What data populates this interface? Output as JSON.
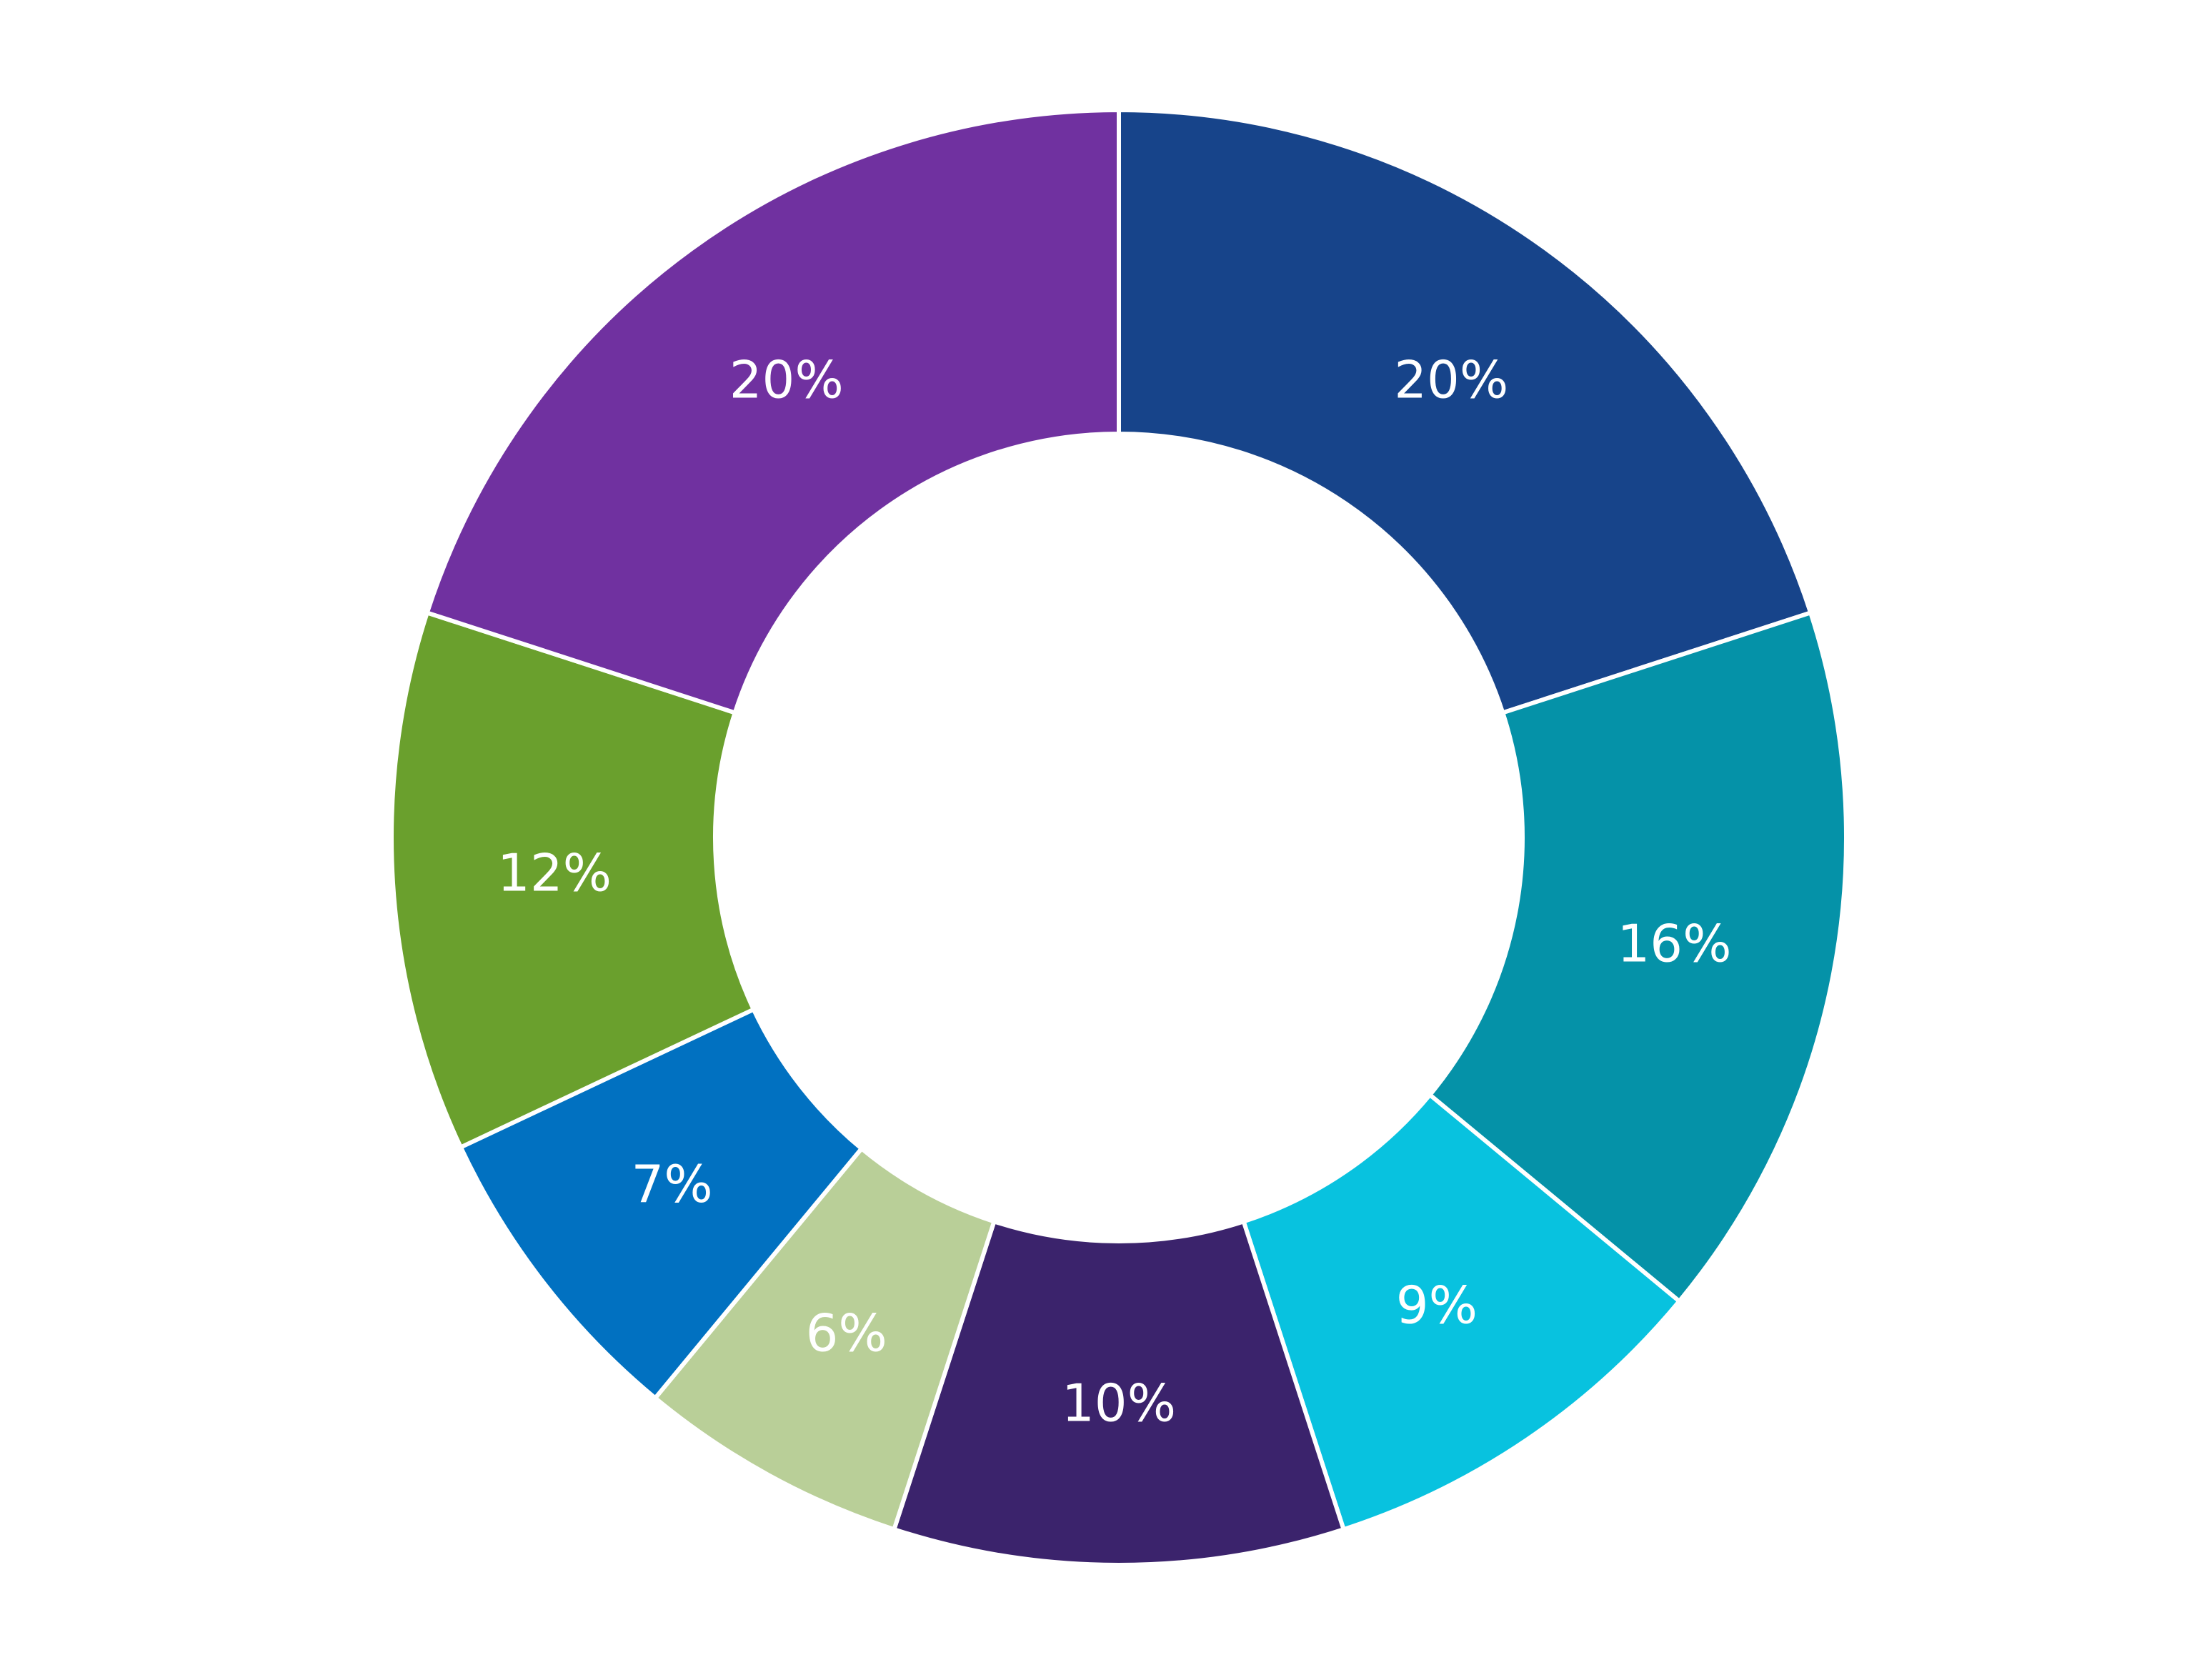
{
  "chart_data": {
    "type": "pie",
    "style": "donut",
    "title": "",
    "legend": "none",
    "slices": [
      {
        "label": "20%",
        "value": 20,
        "color": "#17448a"
      },
      {
        "label": "16%",
        "value": 16,
        "color": "#0592a8"
      },
      {
        "label": "9%",
        "value": 9,
        "color": "#08c2df"
      },
      {
        "label": "10%",
        "value": 10,
        "color": "#3b236c"
      },
      {
        "label": "6%",
        "value": 6,
        "color": "#b9cf98"
      },
      {
        "label": "7%",
        "value": 7,
        "color": "#0171c1"
      },
      {
        "label": "12%",
        "value": 12,
        "color": "#6aa02d"
      },
      {
        "label": "20%",
        "value": 20,
        "color": "#7031a0"
      }
    ]
  }
}
